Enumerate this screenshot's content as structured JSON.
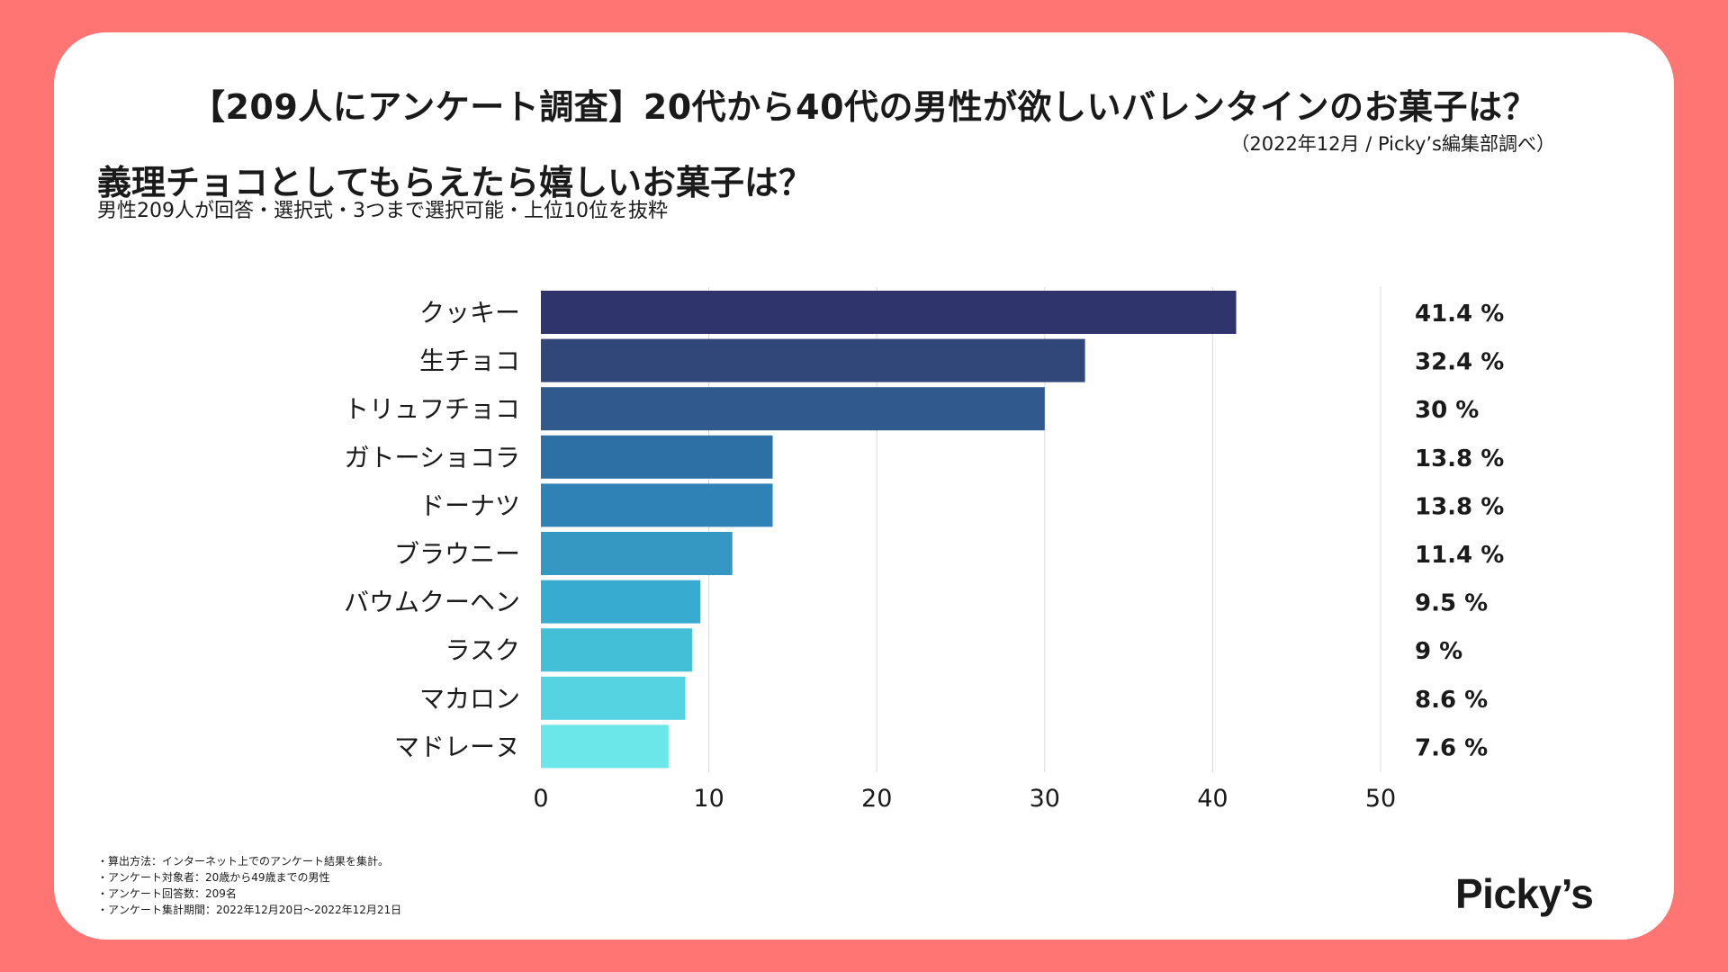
{
  "header": {
    "title": "【209人にアンケート調査】20代から40代の男性が欲しいバレンタインのお菓子は？",
    "credit": "（2022年12月 / Picky’s編集部調べ）"
  },
  "chart_header": {
    "subtitle": "義理チョコとしてもらえたら嬉しいお菓子は？",
    "note": "男性209人が回答・選択式・3つまで選択可能・上位10位を抜粋"
  },
  "chart_data": {
    "type": "bar",
    "orientation": "horizontal",
    "categories": [
      "クッキー",
      "生チョコ",
      "トリュフチョコ",
      "ガトーショコラ",
      "ドーナツ",
      "ブラウニー",
      "バウムクーヘン",
      "ラスク",
      "マカロン",
      "マドレーヌ"
    ],
    "values": [
      41.4,
      32.4,
      30,
      13.8,
      13.8,
      11.4,
      9.5,
      9,
      8.6,
      7.6
    ],
    "value_labels": [
      "41.4 %",
      "32.4 %",
      "30 %",
      "13.8 %",
      "13.8 %",
      "11.4 %",
      "9.5 %",
      "9 %",
      "8.6 %",
      "7.6 %"
    ],
    "xlim": [
      0,
      50
    ],
    "xticks": [
      0,
      10,
      20,
      30,
      40,
      50
    ],
    "grid": true,
    "colors": [
      "#2f356c",
      "#324779",
      "#305a8e",
      "#2c70a5",
      "#2f82b5",
      "#3498c2",
      "#38acd0",
      "#44bfd8",
      "#56d3e0",
      "#6ce7e9"
    ]
  },
  "footnotes": [
    "・算出方法：インターネット上でのアンケート結果を集計。",
    "・アンケート対象者：20歳から49歳までの男性",
    "・アンケート回答数：209名",
    "・アンケート集計期間：2022年12月20日〜2022年12月21日"
  ],
  "brand": {
    "logo_text": "Picky’s"
  }
}
